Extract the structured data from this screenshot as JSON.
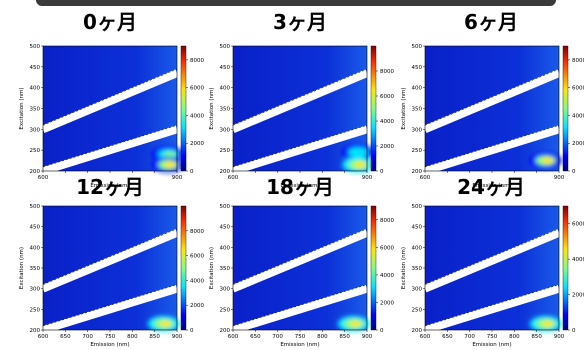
{
  "chart_data": [
    {
      "type": "heatmap",
      "title": "0ヶ月",
      "xlabel": "Emission (nm)",
      "ylabel": "Excitation (nm)",
      "xticks": [
        "600",
        "",
        "",
        "",
        "",
        "",
        "900"
      ],
      "xlim": [
        600,
        900
      ],
      "yticks": [
        "200",
        "250",
        "300",
        "350",
        "400",
        "450",
        "500"
      ],
      "ylim": [
        200,
        500
      ],
      "cbar_ticks": [
        "0",
        "2000",
        "4000",
        "6000",
        "8000"
      ],
      "cbar_max": 9000,
      "hotspots": [
        {
          "x": 880,
          "y": 240,
          "value": 0.55
        },
        {
          "x": 880,
          "y": 215,
          "value": 0.7
        }
      ]
    },
    {
      "type": "heatmap",
      "title": "3ヶ月",
      "xlabel": "Emission (nm)",
      "ylabel": "Excitation (nm)",
      "xticks": [
        "600",
        "",
        "",
        "",
        "",
        "",
        "900"
      ],
      "xlim": [
        600,
        900
      ],
      "yticks": [
        "200",
        "250",
        "300",
        "350",
        "400",
        "450",
        "500"
      ],
      "ylim": [
        200,
        500
      ],
      "cbar_ticks": [
        "0",
        "2000",
        "4000",
        "6000",
        "8000"
      ],
      "cbar_max": 10000,
      "hotspots": [
        {
          "x": 880,
          "y": 245,
          "value": 0.5
        },
        {
          "x": 880,
          "y": 215,
          "value": 0.8
        }
      ]
    },
    {
      "type": "heatmap",
      "title": "6ヶ月",
      "xlabel": "Emission (nm)",
      "ylabel": "Excitation (nm)",
      "xticks": [
        "600",
        "",
        "",
        "",
        "",
        "",
        "900"
      ],
      "xlim": [
        600,
        900
      ],
      "yticks": [
        "200",
        "250",
        "300",
        "350",
        "400",
        "450",
        "500"
      ],
      "ylim": [
        200,
        500
      ],
      "cbar_ticks": [
        "0",
        "2000",
        "4000",
        "6000",
        "8000"
      ],
      "cbar_max": 9000,
      "hotspots": [
        {
          "x": 870,
          "y": 225,
          "value": 0.75
        }
      ]
    },
    {
      "type": "heatmap",
      "title": "12ヶ月",
      "xlabel": "Emission (nm)",
      "ylabel": "Excitation (nm)",
      "xticks": [
        "600",
        "650",
        "700",
        "750",
        "800",
        "850",
        "900"
      ],
      "xlim": [
        600,
        900
      ],
      "yticks": [
        "200",
        "250",
        "300",
        "350",
        "400",
        "450",
        "500"
      ],
      "ylim": [
        200,
        500
      ],
      "cbar_ticks": [
        "0",
        "2000",
        "4000",
        "6000",
        "8000"
      ],
      "cbar_max": 10000,
      "hotspots": [
        {
          "x": 870,
          "y": 215,
          "value": 0.85
        }
      ]
    },
    {
      "type": "heatmap",
      "title": "18ヶ月",
      "xlabel": "Emission (nm)",
      "ylabel": "Excitation (nm)",
      "xticks": [
        "600",
        "650",
        "700",
        "750",
        "800",
        "850",
        "900"
      ],
      "xlim": [
        600,
        900
      ],
      "yticks": [
        "200",
        "250",
        "300",
        "350",
        "400",
        "450",
        "500"
      ],
      "ylim": [
        200,
        500
      ],
      "cbar_ticks": [
        "0",
        "2000",
        "4000",
        "6000",
        "8000"
      ],
      "cbar_max": 9000,
      "hotspots": [
        {
          "x": 870,
          "y": 215,
          "value": 0.8
        }
      ]
    },
    {
      "type": "heatmap",
      "title": "24ヶ月",
      "xlabel": "Emission (nm)",
      "ylabel": "Excitation (nm)",
      "xticks": [
        "600",
        "650",
        "700",
        "750",
        "800",
        "850",
        "900"
      ],
      "xlim": [
        600,
        900
      ],
      "yticks": [
        "200",
        "250",
        "300",
        "350",
        "400",
        "450",
        "500"
      ],
      "ylim": [
        200,
        500
      ],
      "cbar_ticks": [
        "0",
        "2000",
        "4000",
        "6000"
      ],
      "cbar_max": 7000,
      "hotspots": [
        {
          "x": 870,
          "y": 215,
          "value": 0.85
        }
      ]
    }
  ]
}
